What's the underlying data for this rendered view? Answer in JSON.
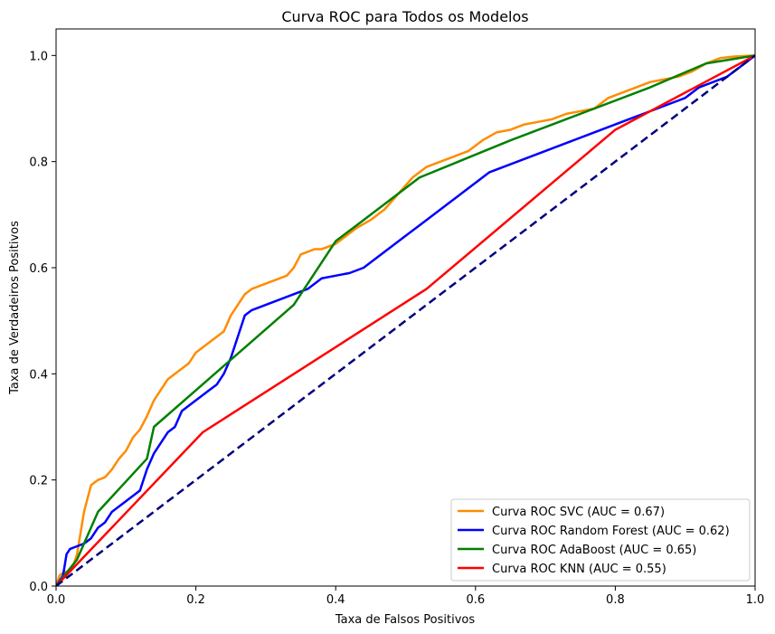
{
  "chart_data": {
    "type": "line",
    "title": "Curva ROC para Todos os Modelos",
    "xlabel": "Taxa de Falsos Positivos",
    "ylabel": "Taxa de Verdadeiros Positivos",
    "xlim": [
      0.0,
      1.0
    ],
    "ylim": [
      0.0,
      1.05
    ],
    "xticks": [
      "0.0",
      "0.2",
      "0.4",
      "0.6",
      "0.8",
      "1.0"
    ],
    "yticks": [
      "0.0",
      "0.2",
      "0.4",
      "0.6",
      "0.8",
      "1.0"
    ],
    "grid": false,
    "legend_position": "lower-right",
    "series": [
      {
        "name": "Curva ROC SVC (AUC = 0.67)",
        "color": "#ff8c00",
        "x": [
          0,
          0.005,
          0.01,
          0.02,
          0.025,
          0.03,
          0.035,
          0.04,
          0.045,
          0.05,
          0.06,
          0.07,
          0.08,
          0.09,
          0.1,
          0.11,
          0.12,
          0.13,
          0.14,
          0.15,
          0.16,
          0.17,
          0.18,
          0.19,
          0.2,
          0.21,
          0.22,
          0.23,
          0.24,
          0.25,
          0.26,
          0.27,
          0.28,
          0.3,
          0.33,
          0.34,
          0.35,
          0.36,
          0.37,
          0.38,
          0.39,
          0.4,
          0.42,
          0.43,
          0.45,
          0.47,
          0.49,
          0.51,
          0.53,
          0.55,
          0.57,
          0.59,
          0.61,
          0.63,
          0.65,
          0.67,
          0.69,
          0.71,
          0.73,
          0.75,
          0.77,
          0.79,
          0.81,
          0.83,
          0.85,
          0.87,
          0.89,
          0.91,
          0.93,
          0.95,
          0.97,
          1.0
        ],
        "y": [
          0,
          0.02,
          0.025,
          0.03,
          0.04,
          0.06,
          0.1,
          0.14,
          0.165,
          0.19,
          0.2,
          0.205,
          0.22,
          0.24,
          0.255,
          0.28,
          0.295,
          0.32,
          0.35,
          0.37,
          0.39,
          0.4,
          0.41,
          0.42,
          0.44,
          0.45,
          0.46,
          0.47,
          0.48,
          0.51,
          0.53,
          0.55,
          0.56,
          0.57,
          0.585,
          0.6,
          0.625,
          0.63,
          0.635,
          0.635,
          0.64,
          0.645,
          0.665,
          0.675,
          0.69,
          0.71,
          0.74,
          0.77,
          0.79,
          0.8,
          0.81,
          0.82,
          0.84,
          0.855,
          0.86,
          0.87,
          0.875,
          0.88,
          0.89,
          0.895,
          0.9,
          0.92,
          0.93,
          0.94,
          0.95,
          0.955,
          0.96,
          0.97,
          0.985,
          0.995,
          0.998,
          1.0
        ]
      },
      {
        "name": "Curva ROC Random Forest (AUC = 0.62)",
        "color": "#0000ff",
        "x": [
          0,
          0.01,
          0.015,
          0.02,
          0.03,
          0.04,
          0.05,
          0.06,
          0.07,
          0.08,
          0.09,
          0.1,
          0.11,
          0.12,
          0.13,
          0.14,
          0.15,
          0.16,
          0.17,
          0.18,
          0.19,
          0.2,
          0.21,
          0.22,
          0.23,
          0.24,
          0.25,
          0.26,
          0.27,
          0.28,
          0.3,
          0.32,
          0.34,
          0.36,
          0.38,
          0.4,
          0.42,
          0.44,
          0.46,
          0.48,
          0.5,
          0.52,
          0.54,
          0.56,
          0.58,
          0.6,
          0.62,
          0.64,
          0.66,
          0.68,
          0.7,
          0.72,
          0.74,
          0.76,
          0.78,
          0.8,
          0.82,
          0.84,
          0.86,
          0.88,
          0.9,
          0.92,
          0.94,
          0.96,
          0.98,
          1.0
        ],
        "y": [
          0,
          0.02,
          0.06,
          0.07,
          0.075,
          0.08,
          0.09,
          0.11,
          0.12,
          0.14,
          0.15,
          0.16,
          0.17,
          0.18,
          0.22,
          0.25,
          0.27,
          0.29,
          0.3,
          0.33,
          0.34,
          0.35,
          0.36,
          0.37,
          0.38,
          0.4,
          0.43,
          0.47,
          0.51,
          0.52,
          0.53,
          0.54,
          0.55,
          0.56,
          0.58,
          0.585,
          0.59,
          0.6,
          0.62,
          0.64,
          0.66,
          0.68,
          0.7,
          0.72,
          0.74,
          0.76,
          0.78,
          0.79,
          0.8,
          0.81,
          0.82,
          0.83,
          0.84,
          0.85,
          0.86,
          0.87,
          0.88,
          0.89,
          0.9,
          0.91,
          0.92,
          0.94,
          0.95,
          0.96,
          0.98,
          1.0
        ]
      },
      {
        "name": "Curva ROC AdaBoost (AUC = 0.65)",
        "color": "#008000",
        "x": [
          0,
          0.03,
          0.06,
          0.13,
          0.14,
          0.34,
          0.4,
          0.43,
          0.52,
          0.65,
          0.75,
          0.85,
          0.93,
          1.0
        ],
        "y": [
          0,
          0.05,
          0.14,
          0.24,
          0.3,
          0.53,
          0.65,
          0.68,
          0.77,
          0.84,
          0.89,
          0.94,
          0.985,
          1.0
        ]
      },
      {
        "name": "Curva ROC KNN (AUC = 0.55)",
        "color": "#ff0000",
        "x": [
          0,
          0.21,
          0.53,
          0.8,
          1.0
        ],
        "y": [
          0,
          0.29,
          0.56,
          0.86,
          1.0
        ]
      },
      {
        "name": "",
        "color": "#000080",
        "dashed": true,
        "x": [
          0,
          1
        ],
        "y": [
          0,
          1
        ]
      }
    ]
  }
}
